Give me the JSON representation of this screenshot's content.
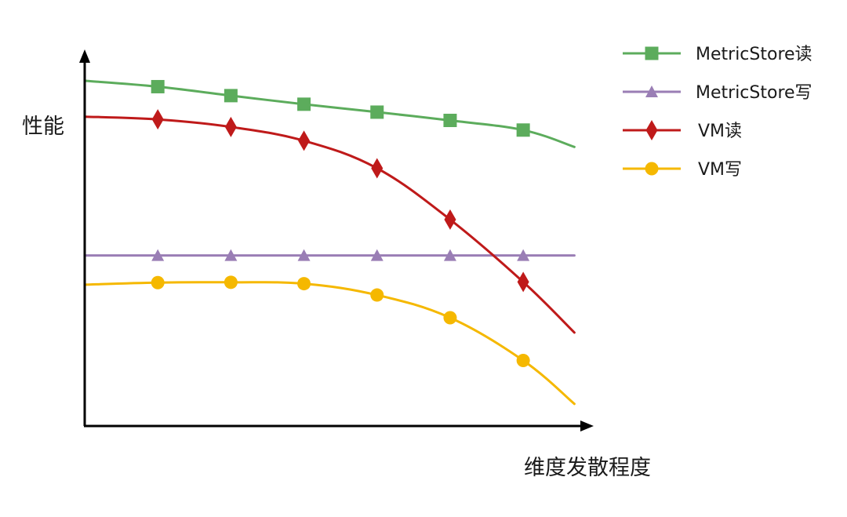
{
  "chart_data": {
    "type": "line",
    "title": "",
    "xlabel": "维度发散程度",
    "ylabel": "性能",
    "x": [
      0,
      1,
      2,
      3,
      4,
      5,
      6,
      6.7
    ],
    "xlim": [
      0,
      7.05
    ],
    "ylim": [
      0,
      100
    ],
    "grid": false,
    "tick_labels": false,
    "legend_position": "top-right",
    "series": [
      {
        "name": "MetricStore读",
        "color": "#5cac5c",
        "marker": "square",
        "values": [
          100,
          98.3,
          95.7,
          93.2,
          90.9,
          88.5,
          85.7,
          80.8
        ]
      },
      {
        "name": "MetricStore写",
        "color": "#9a7eb5",
        "marker": "triangle",
        "values": [
          49.3,
          49.3,
          49.3,
          49.3,
          49.3,
          49.3,
          49.3,
          49.3
        ]
      },
      {
        "name": "VM读",
        "color": "#bf1a1a",
        "marker": "diamond",
        "values": [
          89.6,
          88.8,
          86.6,
          82.6,
          74.6,
          59.7,
          41.6,
          26.9
        ]
      },
      {
        "name": "VM写",
        "color": "#f5b800",
        "marker": "circle",
        "values": [
          40.8,
          41.4,
          41.5,
          41.1,
          37.8,
          31.2,
          18.8,
          6.2
        ]
      }
    ]
  }
}
